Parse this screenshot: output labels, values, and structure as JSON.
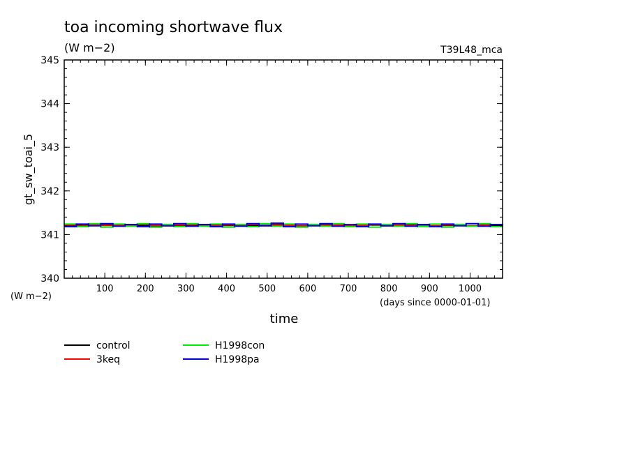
{
  "chart_data": {
    "type": "line",
    "title": "toa incoming shortwave flux",
    "subtitle": "(W m−2)",
    "tag": "T39L48_mca",
    "ylabel": "gt_sw_toai_5",
    "yunits": "(W m−2)",
    "xlabel": "time",
    "xunits": "(days since 0000-01-01)",
    "xlim": [
      0,
      1080
    ],
    "ylim": [
      340,
      345
    ],
    "xticks": [
      100,
      200,
      300,
      400,
      500,
      600,
      700,
      800,
      900,
      1000
    ],
    "yticks": [
      340,
      341,
      342,
      343,
      344,
      345
    ],
    "grid": false,
    "legend_position": "bottom-left",
    "x": [
      0,
      30,
      60,
      90,
      120,
      150,
      180,
      210,
      240,
      270,
      300,
      330,
      360,
      390,
      420,
      450,
      480,
      510,
      540,
      570,
      600,
      630,
      660,
      690,
      720,
      750,
      780,
      810,
      840,
      870,
      900,
      930,
      960,
      990,
      1020,
      1050,
      1080
    ],
    "series": [
      {
        "name": "control",
        "color": "#000000",
        "values": [
          341.2,
          341.22,
          341.21,
          341.23,
          341.2,
          341.22,
          341.21,
          341.2,
          341.23,
          341.21,
          341.22,
          341.2,
          341.23,
          341.21,
          341.22,
          341.2,
          341.21,
          341.23,
          341.22,
          341.2,
          341.21,
          341.22,
          341.2,
          341.23,
          341.21,
          341.22,
          341.2,
          341.21,
          341.23,
          341.22,
          341.2,
          341.21,
          341.22,
          341.2,
          341.23,
          341.21,
          341.2
        ]
      },
      {
        "name": "3keq",
        "color": "#ff0000",
        "values": [
          341.22,
          341.2,
          341.23,
          341.21,
          341.22,
          341.2,
          341.24,
          341.21,
          341.2,
          341.22,
          341.23,
          341.21,
          341.2,
          341.22,
          341.21,
          341.23,
          341.2,
          341.22,
          341.21,
          341.2,
          341.23,
          341.21,
          341.22,
          341.2,
          341.21,
          341.23,
          341.2,
          341.22,
          341.21,
          341.23,
          341.2,
          341.22,
          341.21,
          341.2,
          341.22,
          341.23,
          341.21
        ]
      },
      {
        "name": "H1998con",
        "color": "#00ee00",
        "values": [
          341.24,
          341.18,
          341.25,
          341.17,
          341.24,
          341.19,
          341.25,
          341.17,
          341.23,
          341.18,
          341.25,
          341.19,
          341.24,
          341.17,
          341.23,
          341.18,
          341.25,
          341.19,
          341.24,
          341.17,
          341.23,
          341.19,
          341.25,
          341.18,
          341.24,
          341.17,
          341.23,
          341.19,
          341.25,
          341.18,
          341.24,
          341.17,
          341.23,
          341.19,
          341.25,
          341.18,
          341.24
        ]
      },
      {
        "name": "H1998pa",
        "color": "#0000dd",
        "values": [
          341.18,
          341.24,
          341.2,
          341.25,
          341.19,
          341.23,
          341.18,
          341.24,
          341.2,
          341.25,
          341.19,
          341.23,
          341.18,
          341.24,
          341.19,
          341.25,
          341.2,
          341.26,
          341.18,
          341.24,
          341.2,
          341.25,
          341.19,
          341.23,
          341.18,
          341.24,
          341.2,
          341.25,
          341.19,
          341.23,
          341.18,
          341.24,
          341.2,
          341.25,
          341.19,
          341.23,
          341.18
        ]
      }
    ]
  }
}
